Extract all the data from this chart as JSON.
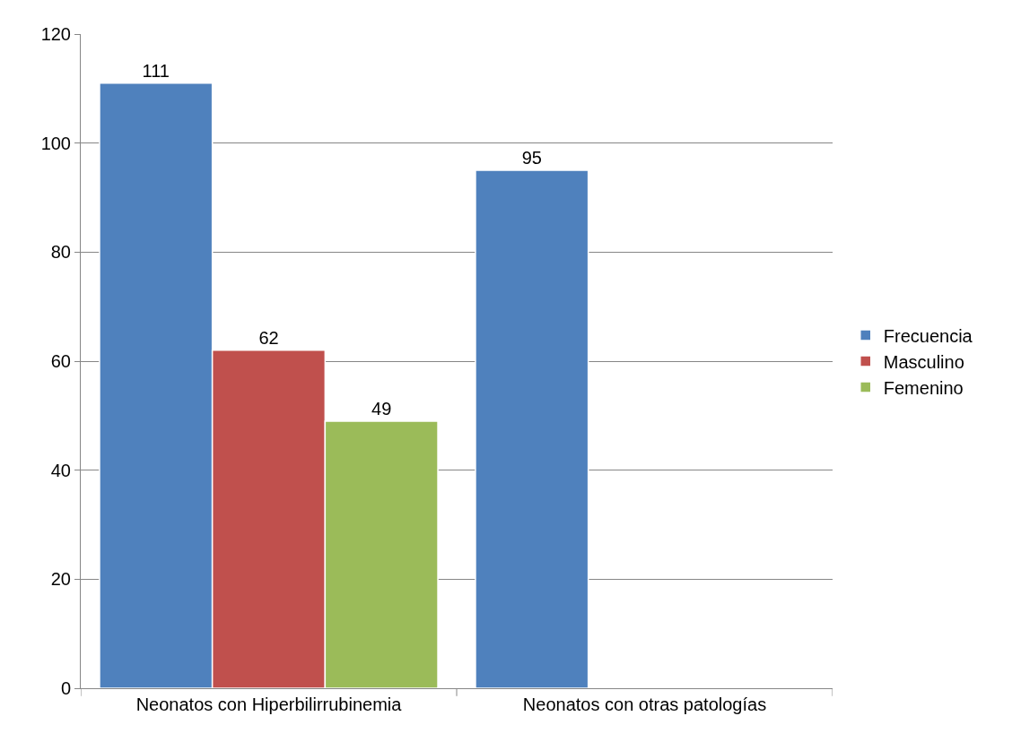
{
  "chart_data": {
    "type": "bar",
    "categories": [
      "Neonatos con Hiperbilirrubinemia",
      "Neonatos con otras patologías"
    ],
    "series": [
      {
        "name": "Frecuencia",
        "color": "#4f81bd",
        "values": [
          111,
          95
        ]
      },
      {
        "name": "Masculino",
        "color": "#c0504d",
        "values": [
          62,
          null
        ]
      },
      {
        "name": "Femenino",
        "color": "#9bbb59",
        "values": [
          49,
          null
        ]
      }
    ],
    "ylim": [
      0,
      120
    ],
    "yticks": [
      0,
      20,
      40,
      60,
      80,
      100,
      120
    ],
    "grid": "y",
    "legend": "right",
    "data_labels": true
  }
}
